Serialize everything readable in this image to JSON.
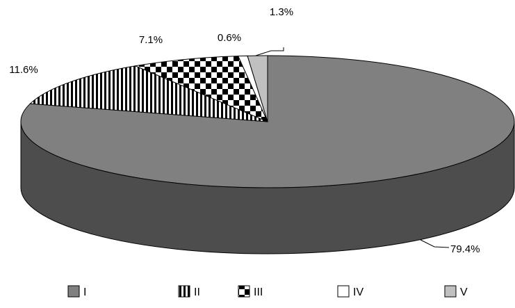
{
  "chart_data": {
    "type": "pie",
    "style": "3d",
    "categories": [
      "I",
      "II",
      "III",
      "IV",
      "V"
    ],
    "values": [
      79.4,
      11.6,
      7.1,
      0.6,
      1.3
    ],
    "data_labels": [
      "79.4%",
      "11.6%",
      "7.1%",
      "0.6%",
      "1.3%"
    ],
    "fills": [
      "#808080",
      "vertical-stripes",
      "checkerboard",
      "#ffffff",
      "#c0c0c0"
    ],
    "legend_position": "bottom",
    "title": ""
  }
}
